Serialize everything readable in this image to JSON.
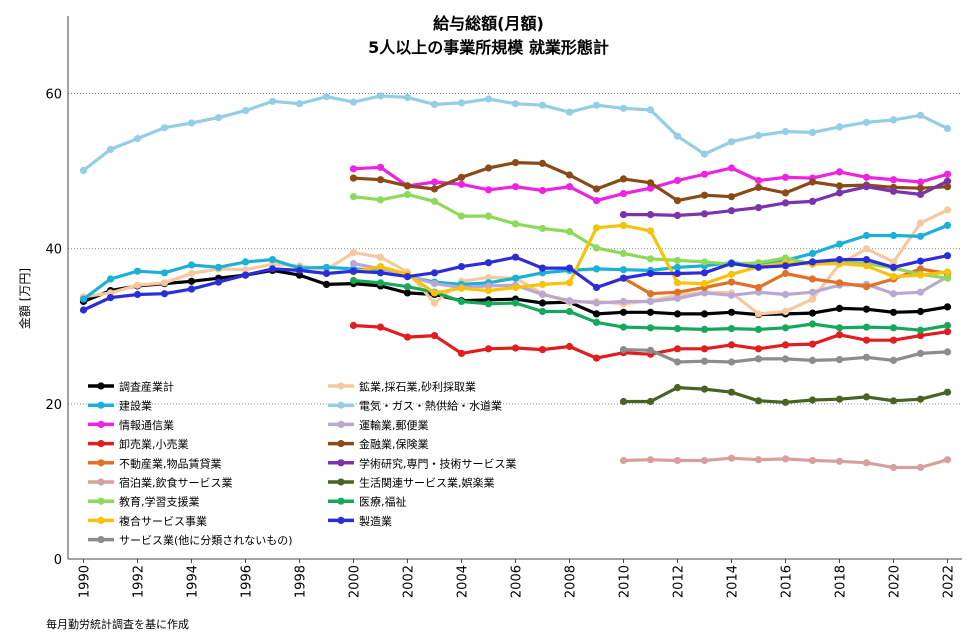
{
  "chart_data": {
    "type": "line",
    "title": "給与総額(月額)",
    "subtitle": "5人以上の事業所規模 就業形態計",
    "ylabel": "金額 [万円]",
    "xlabel": "",
    "xlim": [
      1990,
      2022
    ],
    "ylim": [
      0,
      70
    ],
    "yticks": [
      0,
      20,
      40,
      60
    ],
    "xticks": [
      1990,
      1992,
      1994,
      1996,
      1998,
      2000,
      2002,
      2004,
      2006,
      2008,
      2010,
      2012,
      2014,
      2016,
      2018,
      2020,
      2022
    ],
    "grid": "horizontal dotted",
    "legend_position": "bottom-left",
    "series": [
      {
        "name": "調査産業計",
        "color": "#000000",
        "x_start": 1990,
        "values": [
          33.2,
          34.6,
          35.2,
          35.5,
          35.8,
          36.2,
          36.6,
          37.2,
          36.6,
          35.4,
          35.5,
          35.2,
          34.3,
          34.1,
          33.3,
          33.4,
          33.5,
          33.0,
          33.1,
          31.6,
          31.8,
          31.8,
          31.6,
          31.6,
          31.8,
          31.5,
          31.6,
          31.7,
          32.3,
          32.2,
          31.8,
          31.9,
          32.5
        ]
      },
      {
        "name": "鉱業,採石業,砂利採取業",
        "color": "#f4c9a0",
        "x_start": 1990,
        "values": [
          33.8,
          34.3,
          35.3,
          35.6,
          36.8,
          37.4,
          37.3,
          38.0,
          37.8,
          37.3,
          39.5,
          38.9,
          37.0,
          33.0,
          35.8,
          36.3,
          36.2,
          34.2,
          33.1,
          33.2,
          32.9,
          33.3,
          34.0,
          34.4,
          34.3,
          31.6,
          31.9,
          33.5,
          38.0,
          40.0,
          38.3,
          43.3,
          45.0
        ]
      },
      {
        "name": "建設業",
        "color": "#1ab0d8",
        "x_start": 1990,
        "values": [
          33.5,
          36.1,
          37.1,
          36.9,
          37.9,
          37.6,
          38.3,
          38.6,
          37.5,
          37.6,
          37.4,
          37.2,
          36.4,
          35.7,
          35.4,
          35.6,
          36.2,
          36.9,
          37.2,
          37.4,
          37.3,
          37.2,
          37.6,
          37.8,
          38.2,
          37.9,
          38.5,
          39.4,
          40.6,
          41.7,
          41.7,
          41.6,
          43.0
        ]
      },
      {
        "name": "電気・ガス・熱供給・水道業",
        "color": "#94cde4",
        "x_start": 1990,
        "values": [
          50.1,
          52.8,
          54.2,
          55.6,
          56.2,
          56.9,
          57.8,
          59.0,
          58.7,
          59.6,
          58.9,
          59.7,
          59.5,
          58.6,
          58.8,
          59.3,
          58.7,
          58.5,
          57.6,
          58.5,
          58.1,
          57.9,
          54.5,
          52.2,
          53.8,
          54.6,
          55.1,
          55.0,
          55.7,
          56.3,
          56.6,
          57.2,
          55.5
        ]
      },
      {
        "name": "情報通信業",
        "color": "#ee22e2",
        "x_start": 2000,
        "values": [
          50.3,
          50.5,
          48.1,
          48.6,
          48.3,
          47.6,
          48.0,
          47.5,
          48.0,
          46.2,
          47.1,
          47.8,
          48.8,
          49.6,
          50.4,
          48.8,
          49.2,
          49.1,
          49.9,
          49.2,
          48.9,
          48.6,
          49.6
        ]
      },
      {
        "name": "運輸業,郵便業",
        "color": "#bba7d4",
        "x_start": 2000,
        "values": [
          38.1,
          37.4,
          36.5,
          35.5,
          35.0,
          35.2,
          35.3,
          34.1,
          33.3,
          33.0,
          33.2,
          33.2,
          33.6,
          34.3,
          34.0,
          34.4,
          34.1,
          34.4,
          35.3,
          35.4,
          34.2,
          34.4,
          36.4
        ]
      },
      {
        "name": "卸売業,小売業",
        "color": "#e21d1d",
        "x_start": 2000,
        "values": [
          30.1,
          29.9,
          28.6,
          28.8,
          26.5,
          27.1,
          27.2,
          27.0,
          27.4,
          25.9,
          26.6,
          26.4,
          27.1,
          27.1,
          27.6,
          27.1,
          27.6,
          27.7,
          28.9,
          28.2,
          28.2,
          28.8,
          29.3
        ]
      },
      {
        "name": "金融業,保険業",
        "color": "#8a4a18",
        "x_start": 2000,
        "values": [
          49.1,
          48.9,
          48.1,
          47.7,
          49.2,
          50.4,
          51.1,
          51.0,
          49.5,
          47.7,
          49.0,
          48.5,
          46.2,
          46.9,
          46.7,
          47.9,
          47.2,
          48.6,
          48.1,
          48.2,
          47.9,
          47.8,
          48.0
        ]
      },
      {
        "name": "不動産業,物品賃貸業",
        "color": "#e07126",
        "x_start": 2010,
        "values": [
          36.2,
          34.2,
          34.4,
          35.0,
          35.7,
          35.0,
          36.8,
          36.1,
          35.6,
          35.1,
          36.1,
          37.4,
          36.8
        ]
      },
      {
        "name": "学術研究,専門・技術サービス業",
        "color": "#7a33aa",
        "x_start": 2010,
        "values": [
          44.4,
          44.4,
          44.3,
          44.5,
          44.9,
          45.3,
          45.9,
          46.1,
          47.2,
          48.0,
          47.4,
          47.0,
          48.7
        ]
      },
      {
        "name": "宿泊業,飲食サービス業",
        "color": "#d8a09c",
        "x_start": 2010,
        "values": [
          12.7,
          12.8,
          12.7,
          12.7,
          13.0,
          12.8,
          12.9,
          12.7,
          12.6,
          12.4,
          11.8,
          11.8,
          12.8
        ]
      },
      {
        "name": "生活関連サービス業,娯楽業",
        "color": "#4a6324",
        "x_start": 2010,
        "values": [
          20.3,
          20.3,
          22.1,
          21.9,
          21.5,
          20.4,
          20.2,
          20.5,
          20.6,
          20.9,
          20.4,
          20.6,
          21.5
        ]
      },
      {
        "name": "教育,学習支援業",
        "color": "#8ed85a",
        "x_start": 2000,
        "values": [
          46.7,
          46.3,
          47.0,
          46.1,
          44.2,
          44.2,
          43.2,
          42.6,
          42.2,
          40.1,
          39.4,
          38.7,
          38.5,
          38.3,
          38.0,
          38.2,
          38.8,
          38.0,
          38.2,
          38.1,
          37.5,
          36.7,
          36.2
        ]
      },
      {
        "name": "医療,福祉",
        "color": "#16a85a",
        "x_start": 2000,
        "values": [
          35.9,
          35.6,
          35.1,
          34.4,
          33.2,
          32.9,
          33.0,
          31.9,
          31.9,
          30.5,
          29.9,
          29.8,
          29.7,
          29.6,
          29.7,
          29.6,
          29.8,
          30.3,
          29.8,
          29.9,
          29.8,
          29.5,
          30.1
        ]
      },
      {
        "name": "複合サービス事業",
        "color": "#f5c30c",
        "x_start": 2000,
        "values": [
          37.0,
          37.7,
          36.7,
          34.3,
          34.9,
          34.6,
          35.0,
          35.4,
          35.6,
          42.7,
          43.0,
          42.3,
          35.6,
          35.5,
          36.7,
          37.7,
          38.2,
          38.0,
          38.1,
          37.8,
          36.4,
          36.6,
          37.0
        ]
      },
      {
        "name": "製造業",
        "color": "#2b2ed6",
        "x_start": 1990,
        "values": [
          32.1,
          33.7,
          34.1,
          34.2,
          34.8,
          35.7,
          36.6,
          37.4,
          37.2,
          36.8,
          37.1,
          36.9,
          36.4,
          36.9,
          37.7,
          38.2,
          38.9,
          37.5,
          37.5,
          35.0,
          36.2,
          36.8,
          36.8,
          36.9,
          38.1,
          37.6,
          37.8,
          38.3,
          38.6,
          38.6,
          37.6,
          38.4,
          39.1
        ]
      },
      {
        "name": "サービス業(他に分類されないもの)",
        "color": "#8c8c8c",
        "x_start": 2010,
        "values": [
          27.0,
          26.9,
          25.4,
          25.5,
          25.4,
          25.8,
          25.8,
          25.6,
          25.7,
          26.0,
          25.6,
          26.5,
          26.7
        ]
      }
    ],
    "source_note": "毎月勤労統計調査を基に作成"
  }
}
